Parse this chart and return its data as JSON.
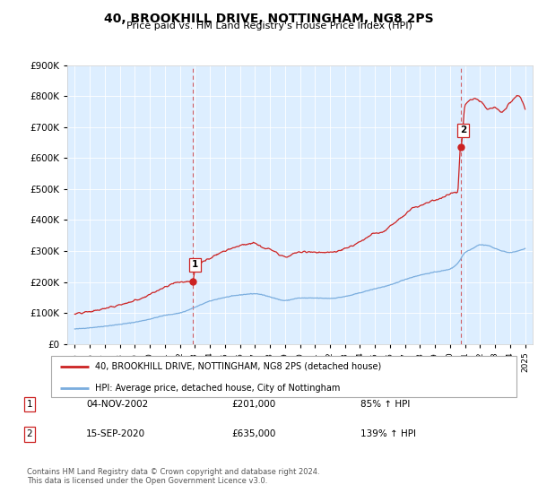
{
  "title": "40, BROOKHILL DRIVE, NOTTINGHAM, NG8 2PS",
  "subtitle": "Price paid vs. HM Land Registry's House Price Index (HPI)",
  "hpi_color": "#7aadde",
  "price_color": "#cc2222",
  "dashed_line_color": "#cc2222",
  "legend_label_price": "40, BROOKHILL DRIVE, NOTTINGHAM, NG8 2PS (detached house)",
  "legend_label_hpi": "HPI: Average price, detached house, City of Nottingham",
  "transaction1_date": "04-NOV-2002",
  "transaction1_price": "£201,000",
  "transaction1_pct": "85% ↑ HPI",
  "transaction1_year": 2002.85,
  "transaction1_value": 201000,
  "transaction2_date": "15-SEP-2020",
  "transaction2_price": "£635,000",
  "transaction2_pct": "139% ↑ HPI",
  "transaction2_year": 2020.71,
  "transaction2_value": 635000,
  "ylim_min": 0,
  "ylim_max": 900000,
  "yticks": [
    0,
    100000,
    200000,
    300000,
    400000,
    500000,
    600000,
    700000,
    800000,
    900000
  ],
  "footer": "Contains HM Land Registry data © Crown copyright and database right 2024.\nThis data is licensed under the Open Government Licence v3.0.",
  "chart_bg": "#ddeeff"
}
